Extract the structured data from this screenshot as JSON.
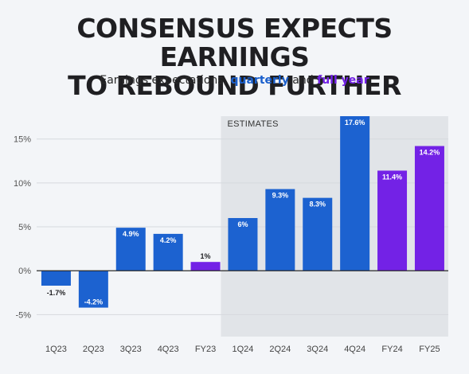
{
  "title_line1": "CONSENSUS EXPECTS EARNINGS",
  "title_line2": "TO REBOUND FURTHER",
  "subtitle": {
    "prefix": "Earnings expectations, ",
    "quarterly": "quarterly",
    "middle": " and ",
    "full_year": "full year"
  },
  "colors": {
    "quarterly": "#1c62d0",
    "full_year": "#7322e6",
    "estimates_band": "#e1e4e8",
    "axis": "#2a2a2a",
    "grid": "#d6d9de",
    "subtitle_quarterly": "#1a5fcc",
    "subtitle_full_year": "#7322e6"
  },
  "chart_data": {
    "type": "bar",
    "categories": [
      "1Q23",
      "2Q23",
      "3Q23",
      "4Q23",
      "FY23",
      "1Q24",
      "2Q24",
      "3Q24",
      "4Q24",
      "FY24",
      "FY25"
    ],
    "values": [
      -1.7,
      -4.2,
      4.9,
      4.2,
      1.0,
      6.0,
      9.3,
      8.3,
      17.6,
      11.4,
      14.2
    ],
    "data_labels": [
      "-1.7%",
      "-4.2%",
      "4.9%",
      "4.2%",
      "1%",
      "6%",
      "9.3%",
      "8.3%",
      "17.6%",
      "11.4%",
      "14.2%"
    ],
    "kinds": [
      "quarterly",
      "quarterly",
      "quarterly",
      "quarterly",
      "full_year",
      "quarterly",
      "quarterly",
      "quarterly",
      "quarterly",
      "full_year",
      "full_year"
    ],
    "ylim": [
      -7.5,
      17.6
    ],
    "yticks": [
      -5,
      0,
      5,
      10,
      15
    ],
    "ytick_labels": [
      "-5%",
      "0%",
      "5%",
      "10%",
      "15%"
    ],
    "grid": true,
    "estimates": {
      "label": "ESTIMATES",
      "start_category": "1Q24",
      "end_category": "FY25"
    },
    "xlabel": "",
    "ylabel": ""
  }
}
